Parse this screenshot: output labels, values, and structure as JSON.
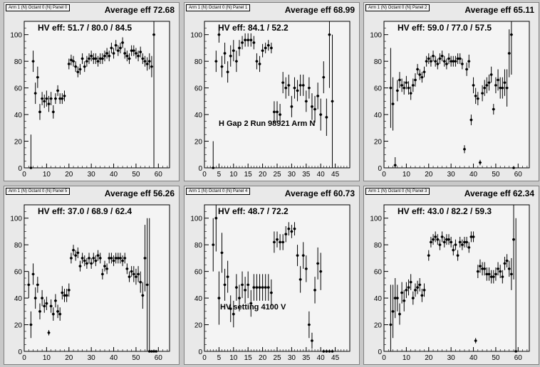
{
  "chart_data": [
    {
      "type": "scatter",
      "pad_label": "Arm 1 (N) Octant 0 (N) Panel 0",
      "avg_label": "Average eff 72.68",
      "hv_label": "HV eff:   51.7 / 80.0 / 84.5",
      "xlim": [
        0,
        65
      ],
      "ylim": [
        0,
        110
      ],
      "xticks": [
        0,
        10,
        20,
        30,
        40,
        50,
        60
      ],
      "yticks": [
        0,
        20,
        40,
        60,
        80,
        100
      ],
      "x": [
        3,
        4,
        5,
        6,
        7,
        8,
        9,
        10,
        11,
        12,
        13,
        14,
        15,
        16,
        17,
        18,
        20,
        21,
        22,
        23,
        24,
        25,
        26,
        27,
        28,
        29,
        30,
        31,
        32,
        33,
        34,
        35,
        36,
        37,
        38,
        39,
        40,
        41,
        42,
        43,
        44,
        45,
        46,
        47,
        48,
        49,
        50,
        51,
        52,
        53,
        54,
        55,
        56,
        57,
        58
      ],
      "y": [
        0,
        80,
        56,
        68,
        42,
        52,
        50,
        52,
        48,
        52,
        42,
        52,
        58,
        52,
        52,
        54,
        78,
        81,
        80,
        76,
        72,
        74,
        82,
        76,
        80,
        82,
        84,
        82,
        82,
        80,
        82,
        82,
        84,
        86,
        84,
        90,
        86,
        92,
        88,
        90,
        94,
        86,
        84,
        82,
        88,
        88,
        86,
        84,
        87,
        82,
        80,
        78,
        80,
        76,
        100
      ],
      "err": [
        25,
        8,
        8,
        8,
        6,
        5,
        5,
        6,
        6,
        5,
        5,
        4,
        4,
        4,
        4,
        4,
        4,
        4,
        4,
        4,
        4,
        4,
        4,
        4,
        4,
        4,
        4,
        4,
        4,
        4,
        4,
        4,
        4,
        4,
        4,
        4,
        4,
        4,
        4,
        4,
        4,
        4,
        4,
        4,
        4,
        4,
        4,
        4,
        4,
        4,
        4,
        5,
        6,
        8,
        100
      ]
    },
    {
      "type": "scatter",
      "pad_label": "Arm 1 (N) Octant 0 (N) Panel 1",
      "avg_label": "Average eff 68.99",
      "hv_label": "HV eff:   84.1 / 52.2",
      "annotation": "H Gap 2 Run 98921 Arm N",
      "xlim": [
        0,
        50
      ],
      "ylim": [
        0,
        110
      ],
      "xticks": [
        0,
        5,
        10,
        15,
        20,
        25,
        30,
        35,
        40,
        45
      ],
      "yticks": [
        0,
        20,
        40,
        60,
        80,
        100
      ],
      "x": [
        3,
        4,
        5,
        6,
        7,
        8,
        9,
        10,
        11,
        12,
        13,
        14,
        15,
        16,
        17,
        18,
        19,
        20,
        21,
        22,
        23,
        24,
        25,
        26,
        27,
        28,
        29,
        30,
        31,
        32,
        33,
        34,
        35,
        36,
        37,
        38,
        39,
        40,
        41,
        42,
        43,
        44
      ],
      "y": [
        0,
        80,
        100,
        76,
        86,
        72,
        84,
        88,
        80,
        90,
        94,
        96,
        96,
        96,
        94,
        80,
        78,
        88,
        90,
        92,
        90,
        42,
        42,
        40,
        64,
        60,
        62,
        46,
        60,
        58,
        62,
        62,
        50,
        60,
        46,
        44,
        54,
        40,
        68,
        38,
        100,
        50
      ],
      "err": [
        20,
        8,
        6,
        8,
        8,
        8,
        8,
        8,
        8,
        6,
        5,
        5,
        5,
        5,
        5,
        6,
        6,
        5,
        4,
        4,
        4,
        8,
        8,
        8,
        8,
        8,
        8,
        8,
        8,
        8,
        8,
        8,
        8,
        8,
        10,
        10,
        10,
        12,
        12,
        14,
        40,
        50
      ]
    },
    {
      "type": "scatter",
      "pad_label": "Arm 1 (N) Octant 0 (N) Panel 2",
      "avg_label": "Average eff 65.11",
      "hv_label": "HV eff:   59.0 / 77.0 / 57.5",
      "xlim": [
        0,
        65
      ],
      "ylim": [
        0,
        110
      ],
      "xticks": [
        0,
        10,
        20,
        30,
        40,
        50,
        60
      ],
      "yticks": [
        0,
        20,
        40,
        60,
        80,
        100
      ],
      "x": [
        3,
        4,
        5,
        6,
        7,
        8,
        9,
        10,
        11,
        12,
        13,
        14,
        15,
        16,
        17,
        18,
        19,
        20,
        21,
        22,
        23,
        24,
        25,
        26,
        27,
        28,
        29,
        30,
        31,
        32,
        33,
        34,
        35,
        36,
        37,
        38,
        39,
        40,
        41,
        42,
        43,
        44,
        45,
        46,
        47,
        48,
        49,
        50,
        51,
        52,
        53,
        54,
        55,
        56,
        57,
        58
      ],
      "y": [
        60,
        48,
        2,
        58,
        66,
        62,
        60,
        64,
        60,
        56,
        62,
        66,
        74,
        70,
        68,
        72,
        80,
        82,
        80,
        84,
        80,
        78,
        82,
        84,
        80,
        78,
        82,
        80,
        80,
        80,
        82,
        82,
        78,
        14,
        74,
        80,
        36,
        62,
        54,
        52,
        4,
        56,
        60,
        62,
        64,
        70,
        44,
        62,
        66,
        60,
        60,
        64,
        60,
        86,
        100,
        0
      ],
      "err": [
        30,
        20,
        6,
        8,
        6,
        5,
        5,
        5,
        5,
        5,
        5,
        5,
        4,
        4,
        4,
        4,
        4,
        4,
        4,
        4,
        4,
        4,
        4,
        4,
        4,
        4,
        4,
        4,
        4,
        4,
        4,
        4,
        4,
        3,
        5,
        5,
        4,
        6,
        6,
        5,
        2,
        6,
        6,
        6,
        6,
        6,
        4,
        6,
        8,
        8,
        8,
        10,
        14,
        18,
        30,
        0
      ]
    },
    {
      "type": "scatter",
      "pad_label": "Arm 1 (N) Octant 0 (N) Panel 5",
      "avg_label": "Average eff 56.26",
      "hv_label": "HV eff:   37.0 / 68.9 / 62.4",
      "xlim": [
        0,
        65
      ],
      "ylim": [
        0,
        110
      ],
      "xticks": [
        0,
        10,
        20,
        30,
        40,
        50,
        60
      ],
      "yticks": [
        0,
        20,
        40,
        60,
        80,
        100
      ],
      "x": [
        2,
        3,
        4,
        5,
        6,
        7,
        8,
        9,
        10,
        11,
        12,
        13,
        14,
        15,
        16,
        17,
        18,
        19,
        20,
        21,
        22,
        23,
        24,
        25,
        26,
        27,
        28,
        29,
        30,
        31,
        32,
        33,
        34,
        35,
        36,
        37,
        38,
        39,
        40,
        41,
        42,
        43,
        44,
        45,
        46,
        47,
        48,
        49,
        50,
        51,
        52,
        53,
        54,
        55,
        56,
        57,
        58,
        59
      ],
      "y": [
        50,
        20,
        58,
        40,
        50,
        30,
        40,
        34,
        36,
        14,
        34,
        28,
        38,
        30,
        28,
        44,
        42,
        42,
        46,
        70,
        76,
        72,
        74,
        64,
        70,
        68,
        66,
        70,
        66,
        70,
        68,
        72,
        70,
        58,
        64,
        62,
        70,
        70,
        68,
        70,
        70,
        70,
        68,
        70,
        62,
        56,
        60,
        58,
        56,
        58,
        52,
        42,
        70,
        50,
        0,
        0,
        0,
        0
      ],
      "err": [
        10,
        10,
        8,
        8,
        6,
        6,
        6,
        5,
        5,
        2,
        5,
        5,
        5,
        5,
        5,
        5,
        5,
        5,
        5,
        4,
        4,
        4,
        4,
        4,
        4,
        4,
        4,
        4,
        4,
        4,
        4,
        4,
        4,
        4,
        4,
        4,
        4,
        4,
        4,
        4,
        4,
        4,
        4,
        4,
        4,
        4,
        4,
        6,
        6,
        6,
        8,
        10,
        25,
        50,
        100,
        0,
        0,
        0
      ]
    },
    {
      "type": "scatter",
      "pad_label": "Arm 1 (N) Octant 0 (N) Panel 4",
      "avg_label": "Average eff 60.73",
      "hv_label": "HV eff:   48.7 / 72.2",
      "annotation": "HV setting 4100 V",
      "xlim": [
        0,
        50
      ],
      "ylim": [
        0,
        110
      ],
      "xticks": [
        0,
        5,
        10,
        15,
        20,
        25,
        30,
        35,
        40,
        45
      ],
      "yticks": [
        0,
        20,
        40,
        60,
        80,
        100
      ],
      "x": [
        3,
        4,
        5,
        6,
        7,
        8,
        9,
        10,
        11,
        12,
        13,
        14,
        15,
        16,
        17,
        18,
        19,
        20,
        21,
        22,
        23,
        24,
        25,
        26,
        27,
        28,
        29,
        30,
        31,
        32,
        33,
        34,
        35,
        36,
        37,
        38,
        39,
        40,
        41,
        42,
        43,
        44
      ],
      "y": [
        80,
        100,
        40,
        74,
        50,
        56,
        32,
        28,
        48,
        40,
        50,
        46,
        50,
        36,
        48,
        48,
        48,
        48,
        48,
        48,
        44,
        82,
        84,
        82,
        82,
        88,
        92,
        90,
        92,
        72,
        54,
        72,
        62,
        20,
        8,
        46,
        66,
        60,
        0,
        0,
        0,
        0
      ],
      "err": [
        20,
        25,
        20,
        15,
        12,
        12,
        10,
        10,
        10,
        10,
        10,
        10,
        10,
        10,
        10,
        10,
        10,
        10,
        10,
        10,
        10,
        8,
        6,
        6,
        6,
        6,
        5,
        5,
        5,
        8,
        10,
        10,
        10,
        10,
        6,
        10,
        12,
        14,
        0,
        0,
        0,
        0
      ]
    },
    {
      "type": "scatter",
      "pad_label": "Arm 1 (N) Octant 0 (N) Panel 3",
      "avg_label": "Average eff 62.34",
      "hv_label": "HV eff:   43.0 / 82.2 / 59.3",
      "xlim": [
        0,
        65
      ],
      "ylim": [
        0,
        110
      ],
      "xticks": [
        0,
        10,
        20,
        30,
        40,
        50,
        60
      ],
      "yticks": [
        0,
        20,
        40,
        60,
        80,
        100
      ],
      "x": [
        3,
        4,
        5,
        6,
        7,
        8,
        9,
        10,
        11,
        12,
        13,
        14,
        15,
        16,
        17,
        18,
        20,
        21,
        22,
        23,
        24,
        25,
        26,
        27,
        28,
        29,
        30,
        31,
        32,
        33,
        34,
        35,
        36,
        37,
        38,
        39,
        40,
        41,
        42,
        43,
        44,
        45,
        46,
        47,
        48,
        49,
        50,
        51,
        52,
        53,
        54,
        55,
        56,
        57,
        58,
        59
      ],
      "y": [
        20,
        30,
        40,
        40,
        28,
        44,
        38,
        46,
        48,
        52,
        40,
        46,
        48,
        50,
        42,
        46,
        72,
        82,
        84,
        86,
        84,
        80,
        86,
        82,
        84,
        84,
        82,
        76,
        80,
        72,
        82,
        80,
        82,
        82,
        78,
        86,
        86,
        8,
        60,
        64,
        62,
        62,
        58,
        58,
        56,
        56,
        58,
        62,
        60,
        56,
        66,
        68,
        62,
        58,
        84,
        0
      ],
      "err": [
        30,
        20,
        15,
        10,
        8,
        8,
        8,
        6,
        6,
        6,
        5,
        5,
        5,
        5,
        5,
        5,
        4,
        4,
        4,
        4,
        4,
        4,
        4,
        4,
        4,
        4,
        4,
        4,
        4,
        4,
        4,
        4,
        4,
        4,
        4,
        4,
        4,
        2,
        5,
        5,
        5,
        5,
        5,
        5,
        5,
        5,
        5,
        5,
        5,
        5,
        5,
        5,
        6,
        12,
        30,
        100
      ]
    }
  ]
}
